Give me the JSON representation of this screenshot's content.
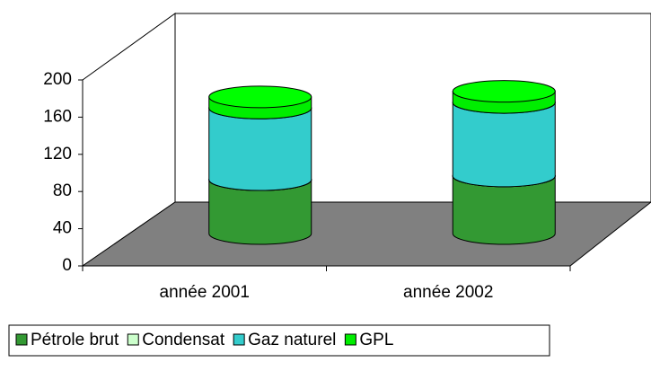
{
  "chart_data": {
    "type": "bar3d-cylinder-stacked",
    "categories": [
      "année 2001",
      "année 2002"
    ],
    "series": [
      {
        "name": "Pétrole brut",
        "color": "#339933",
        "values": [
          58,
          62
        ]
      },
      {
        "name": "Condensat",
        "color": "#ccffcc",
        "values": [
          0,
          0
        ]
      },
      {
        "name": "Gaz naturel",
        "color": "#33cccc",
        "values": [
          77,
          79
        ]
      },
      {
        "name": "GPL",
        "color": "#00ee00",
        "values": [
          12,
          12
        ]
      }
    ],
    "ylim": [
      0,
      200
    ],
    "yticks": [
      0,
      40,
      80,
      120,
      160,
      200
    ],
    "stacked": true
  }
}
